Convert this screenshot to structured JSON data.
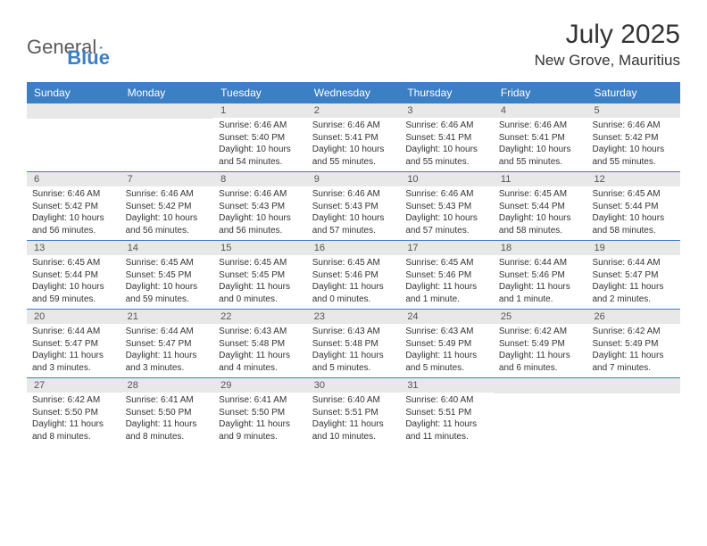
{
  "logo": {
    "text1": "General",
    "text2": "Blue"
  },
  "title": "July 2025",
  "location": "New Grove, Mauritius",
  "colors": {
    "header_bar": "#3b7fc4",
    "daynum_bg": "#e8e8e8",
    "text": "#333333",
    "logo_gray": "#5a5a5a",
    "logo_blue": "#3b7fc4"
  },
  "day_names": [
    "Sunday",
    "Monday",
    "Tuesday",
    "Wednesday",
    "Thursday",
    "Friday",
    "Saturday"
  ],
  "weeks": [
    [
      {
        "num": "",
        "empty": true
      },
      {
        "num": "",
        "empty": true
      },
      {
        "num": "1",
        "sunrise": "Sunrise: 6:46 AM",
        "sunset": "Sunset: 5:40 PM",
        "daylight": "Daylight: 10 hours and 54 minutes."
      },
      {
        "num": "2",
        "sunrise": "Sunrise: 6:46 AM",
        "sunset": "Sunset: 5:41 PM",
        "daylight": "Daylight: 10 hours and 55 minutes."
      },
      {
        "num": "3",
        "sunrise": "Sunrise: 6:46 AM",
        "sunset": "Sunset: 5:41 PM",
        "daylight": "Daylight: 10 hours and 55 minutes."
      },
      {
        "num": "4",
        "sunrise": "Sunrise: 6:46 AM",
        "sunset": "Sunset: 5:41 PM",
        "daylight": "Daylight: 10 hours and 55 minutes."
      },
      {
        "num": "5",
        "sunrise": "Sunrise: 6:46 AM",
        "sunset": "Sunset: 5:42 PM",
        "daylight": "Daylight: 10 hours and 55 minutes."
      }
    ],
    [
      {
        "num": "6",
        "sunrise": "Sunrise: 6:46 AM",
        "sunset": "Sunset: 5:42 PM",
        "daylight": "Daylight: 10 hours and 56 minutes."
      },
      {
        "num": "7",
        "sunrise": "Sunrise: 6:46 AM",
        "sunset": "Sunset: 5:42 PM",
        "daylight": "Daylight: 10 hours and 56 minutes."
      },
      {
        "num": "8",
        "sunrise": "Sunrise: 6:46 AM",
        "sunset": "Sunset: 5:43 PM",
        "daylight": "Daylight: 10 hours and 56 minutes."
      },
      {
        "num": "9",
        "sunrise": "Sunrise: 6:46 AM",
        "sunset": "Sunset: 5:43 PM",
        "daylight": "Daylight: 10 hours and 57 minutes."
      },
      {
        "num": "10",
        "sunrise": "Sunrise: 6:46 AM",
        "sunset": "Sunset: 5:43 PM",
        "daylight": "Daylight: 10 hours and 57 minutes."
      },
      {
        "num": "11",
        "sunrise": "Sunrise: 6:45 AM",
        "sunset": "Sunset: 5:44 PM",
        "daylight": "Daylight: 10 hours and 58 minutes."
      },
      {
        "num": "12",
        "sunrise": "Sunrise: 6:45 AM",
        "sunset": "Sunset: 5:44 PM",
        "daylight": "Daylight: 10 hours and 58 minutes."
      }
    ],
    [
      {
        "num": "13",
        "sunrise": "Sunrise: 6:45 AM",
        "sunset": "Sunset: 5:44 PM",
        "daylight": "Daylight: 10 hours and 59 minutes."
      },
      {
        "num": "14",
        "sunrise": "Sunrise: 6:45 AM",
        "sunset": "Sunset: 5:45 PM",
        "daylight": "Daylight: 10 hours and 59 minutes."
      },
      {
        "num": "15",
        "sunrise": "Sunrise: 6:45 AM",
        "sunset": "Sunset: 5:45 PM",
        "daylight": "Daylight: 11 hours and 0 minutes."
      },
      {
        "num": "16",
        "sunrise": "Sunrise: 6:45 AM",
        "sunset": "Sunset: 5:46 PM",
        "daylight": "Daylight: 11 hours and 0 minutes."
      },
      {
        "num": "17",
        "sunrise": "Sunrise: 6:45 AM",
        "sunset": "Sunset: 5:46 PM",
        "daylight": "Daylight: 11 hours and 1 minute."
      },
      {
        "num": "18",
        "sunrise": "Sunrise: 6:44 AM",
        "sunset": "Sunset: 5:46 PM",
        "daylight": "Daylight: 11 hours and 1 minute."
      },
      {
        "num": "19",
        "sunrise": "Sunrise: 6:44 AM",
        "sunset": "Sunset: 5:47 PM",
        "daylight": "Daylight: 11 hours and 2 minutes."
      }
    ],
    [
      {
        "num": "20",
        "sunrise": "Sunrise: 6:44 AM",
        "sunset": "Sunset: 5:47 PM",
        "daylight": "Daylight: 11 hours and 3 minutes."
      },
      {
        "num": "21",
        "sunrise": "Sunrise: 6:44 AM",
        "sunset": "Sunset: 5:47 PM",
        "daylight": "Daylight: 11 hours and 3 minutes."
      },
      {
        "num": "22",
        "sunrise": "Sunrise: 6:43 AM",
        "sunset": "Sunset: 5:48 PM",
        "daylight": "Daylight: 11 hours and 4 minutes."
      },
      {
        "num": "23",
        "sunrise": "Sunrise: 6:43 AM",
        "sunset": "Sunset: 5:48 PM",
        "daylight": "Daylight: 11 hours and 5 minutes."
      },
      {
        "num": "24",
        "sunrise": "Sunrise: 6:43 AM",
        "sunset": "Sunset: 5:49 PM",
        "daylight": "Daylight: 11 hours and 5 minutes."
      },
      {
        "num": "25",
        "sunrise": "Sunrise: 6:42 AM",
        "sunset": "Sunset: 5:49 PM",
        "daylight": "Daylight: 11 hours and 6 minutes."
      },
      {
        "num": "26",
        "sunrise": "Sunrise: 6:42 AM",
        "sunset": "Sunset: 5:49 PM",
        "daylight": "Daylight: 11 hours and 7 minutes."
      }
    ],
    [
      {
        "num": "27",
        "sunrise": "Sunrise: 6:42 AM",
        "sunset": "Sunset: 5:50 PM",
        "daylight": "Daylight: 11 hours and 8 minutes."
      },
      {
        "num": "28",
        "sunrise": "Sunrise: 6:41 AM",
        "sunset": "Sunset: 5:50 PM",
        "daylight": "Daylight: 11 hours and 8 minutes."
      },
      {
        "num": "29",
        "sunrise": "Sunrise: 6:41 AM",
        "sunset": "Sunset: 5:50 PM",
        "daylight": "Daylight: 11 hours and 9 minutes."
      },
      {
        "num": "30",
        "sunrise": "Sunrise: 6:40 AM",
        "sunset": "Sunset: 5:51 PM",
        "daylight": "Daylight: 11 hours and 10 minutes."
      },
      {
        "num": "31",
        "sunrise": "Sunrise: 6:40 AM",
        "sunset": "Sunset: 5:51 PM",
        "daylight": "Daylight: 11 hours and 11 minutes."
      },
      {
        "num": "",
        "empty": true
      },
      {
        "num": "",
        "empty": true
      }
    ]
  ]
}
